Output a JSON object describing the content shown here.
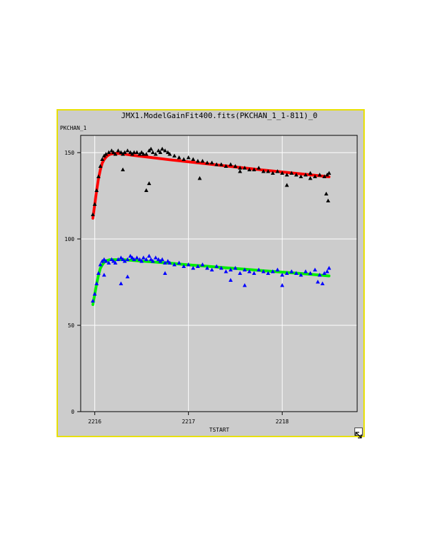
{
  "colors": {
    "background": "#cccccc",
    "frame_border": "#e8e000",
    "grid": "#ffffff",
    "text": "#000000"
  },
  "resize_handle_icon": "resize-arrow-icon",
  "chart_data": {
    "type": "scatter",
    "title": "JMX1.ModelGainFit400.fits(PKCHAN_1_1-811)_0",
    "xlabel": "TSTART",
    "ylabel": "PKCHAN_1",
    "xlim": [
      2215.85,
      2218.8
    ],
    "ylim": [
      0,
      160
    ],
    "x_ticks": [
      2216,
      2217,
      2218
    ],
    "y_ticks": [
      0,
      50,
      100,
      150
    ],
    "grid": true,
    "series": [
      {
        "marker": "triangle",
        "color": "#000000",
        "x": [
          2215.98,
          2216.0,
          2216.02,
          2216.04,
          2216.06,
          2216.08,
          2216.1,
          2216.12,
          2216.15,
          2216.18,
          2216.2,
          2216.22,
          2216.25,
          2216.28,
          2216.3,
          2216.32,
          2216.35,
          2216.38,
          2216.4,
          2216.42,
          2216.45,
          2216.48,
          2216.5,
          2216.52,
          2216.55,
          2216.58,
          2216.6,
          2216.62,
          2216.65,
          2216.68,
          2216.7,
          2216.72,
          2216.75,
          2216.78,
          2216.8,
          2216.85,
          2216.9,
          2216.95,
          2217.0,
          2217.05,
          2217.1,
          2217.15,
          2217.2,
          2217.25,
          2217.3,
          2217.35,
          2217.4,
          2217.45,
          2217.5,
          2217.55,
          2217.6,
          2217.65,
          2217.7,
          2217.75,
          2217.8,
          2217.85,
          2217.9,
          2217.95,
          2218.0,
          2218.05,
          2218.1,
          2218.15,
          2218.2,
          2218.25,
          2218.3,
          2218.35,
          2218.4,
          2218.45,
          2218.48,
          2218.5,
          2216.3,
          2216.55,
          2216.58,
          2217.12,
          2217.55,
          2218.05,
          2218.3,
          2218.47,
          2218.49
        ],
        "y": [
          114,
          120,
          128,
          136,
          142,
          146,
          148,
          149,
          150,
          151,
          150,
          149,
          151,
          150,
          149,
          150,
          151,
          150,
          149,
          150,
          150,
          149,
          150,
          149,
          149,
          151,
          152,
          150,
          149,
          151,
          150,
          152,
          151,
          150,
          149,
          148,
          147,
          146,
          147,
          146,
          145,
          145,
          144,
          144,
          143,
          143,
          142,
          143,
          142,
          141,
          141,
          140,
          140,
          141,
          139,
          139,
          138,
          139,
          138,
          137,
          138,
          137,
          136,
          137,
          138,
          136,
          137,
          136,
          137,
          138,
          140,
          128,
          132,
          135,
          139,
          131,
          135,
          126,
          122
        ]
      },
      {
        "marker": "triangle",
        "color": "#0000ff",
        "x": [
          2215.98,
          2216.0,
          2216.02,
          2216.04,
          2216.06,
          2216.08,
          2216.1,
          2216.12,
          2216.15,
          2216.18,
          2216.2,
          2216.22,
          2216.25,
          2216.28,
          2216.3,
          2216.32,
          2216.35,
          2216.38,
          2216.4,
          2216.42,
          2216.45,
          2216.48,
          2216.5,
          2216.52,
          2216.55,
          2216.58,
          2216.6,
          2216.62,
          2216.65,
          2216.68,
          2216.7,
          2216.72,
          2216.75,
          2216.78,
          2216.8,
          2216.85,
          2216.9,
          2216.95,
          2217.0,
          2217.05,
          2217.1,
          2217.15,
          2217.2,
          2217.25,
          2217.3,
          2217.35,
          2217.4,
          2217.45,
          2217.5,
          2217.55,
          2217.6,
          2217.65,
          2217.7,
          2217.75,
          2217.8,
          2217.85,
          2217.9,
          2217.95,
          2218.0,
          2218.05,
          2218.1,
          2218.15,
          2218.2,
          2218.25,
          2218.3,
          2218.35,
          2218.4,
          2218.45,
          2218.48,
          2218.5,
          2216.1,
          2216.28,
          2216.35,
          2216.75,
          2217.45,
          2217.6,
          2218.0,
          2218.38,
          2218.43
        ],
        "y": [
          64,
          68,
          74,
          80,
          85,
          87,
          88,
          87,
          86,
          88,
          87,
          86,
          88,
          89,
          88,
          87,
          88,
          90,
          89,
          88,
          89,
          88,
          87,
          89,
          88,
          90,
          88,
          87,
          89,
          88,
          87,
          88,
          86,
          87,
          86,
          85,
          86,
          84,
          85,
          83,
          84,
          85,
          83,
          82,
          84,
          83,
          81,
          82,
          83,
          80,
          82,
          81,
          80,
          82,
          81,
          80,
          81,
          82,
          79,
          80,
          81,
          80,
          79,
          81,
          80,
          82,
          79,
          80,
          81,
          83,
          79,
          74,
          78,
          80,
          76,
          73,
          73,
          75,
          74
        ]
      },
      {
        "marker": "line",
        "color": "#ff0000",
        "x": [
          2215.98,
          2216.0,
          2216.02,
          2216.04,
          2216.06,
          2216.08,
          2216.1,
          2216.13,
          2216.16,
          2216.2,
          2216.25,
          2216.3,
          2216.4,
          2216.6,
          2216.8,
          2217.0,
          2217.2,
          2217.4,
          2217.6,
          2217.8,
          2218.0,
          2218.2,
          2218.4,
          2218.5
        ],
        "y": [
          112,
          120,
          128,
          135,
          140,
          144,
          146,
          148,
          149,
          149.5,
          149.5,
          149.3,
          148.5,
          147.2,
          145.9,
          144.7,
          143.5,
          142.3,
          141.1,
          139.9,
          138.8,
          137.7,
          136.6,
          136
        ]
      },
      {
        "marker": "line",
        "color": "#00ee00",
        "x": [
          2215.98,
          2216.0,
          2216.02,
          2216.04,
          2216.06,
          2216.08,
          2216.1,
          2216.13,
          2216.16,
          2216.2,
          2216.3,
          2216.4,
          2216.6,
          2216.8,
          2217.0,
          2217.2,
          2217.4,
          2217.6,
          2217.8,
          2218.0,
          2218.2,
          2218.4,
          2218.5
        ],
        "y": [
          62,
          68,
          74,
          79,
          83,
          85,
          86.5,
          87.5,
          88,
          88,
          88,
          87.6,
          86.8,
          86,
          85,
          84.2,
          83.3,
          82.5,
          81.6,
          80.8,
          80,
          79.1,
          78.6
        ]
      }
    ]
  }
}
